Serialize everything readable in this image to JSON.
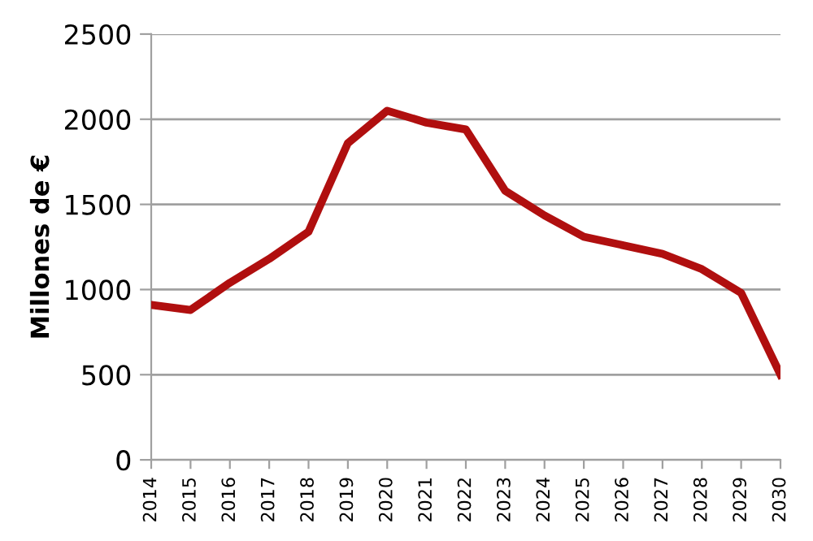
{
  "chart_data": {
    "type": "line",
    "ylabel": "Millones de €",
    "categories": [
      "2014",
      "2015",
      "2016",
      "2017",
      "2018",
      "2019",
      "2020",
      "2021",
      "2022",
      "2023",
      "2024",
      "2025",
      "2026",
      "2027",
      "2028",
      "2029",
      "2030"
    ],
    "series": [
      {
        "color": "#b00f0f",
        "values": [
          910,
          880,
          1040,
          1180,
          1340,
          1860,
          2050,
          1980,
          1940,
          1580,
          1435,
          1310,
          1260,
          1210,
          1120,
          980,
          500
        ]
      }
    ],
    "ylim": [
      0,
      2500
    ],
    "yticks": [
      0,
      500,
      1000,
      1500,
      2000,
      2500
    ],
    "grid": "y",
    "legend": false,
    "marker": "none",
    "line_style": "solid"
  }
}
